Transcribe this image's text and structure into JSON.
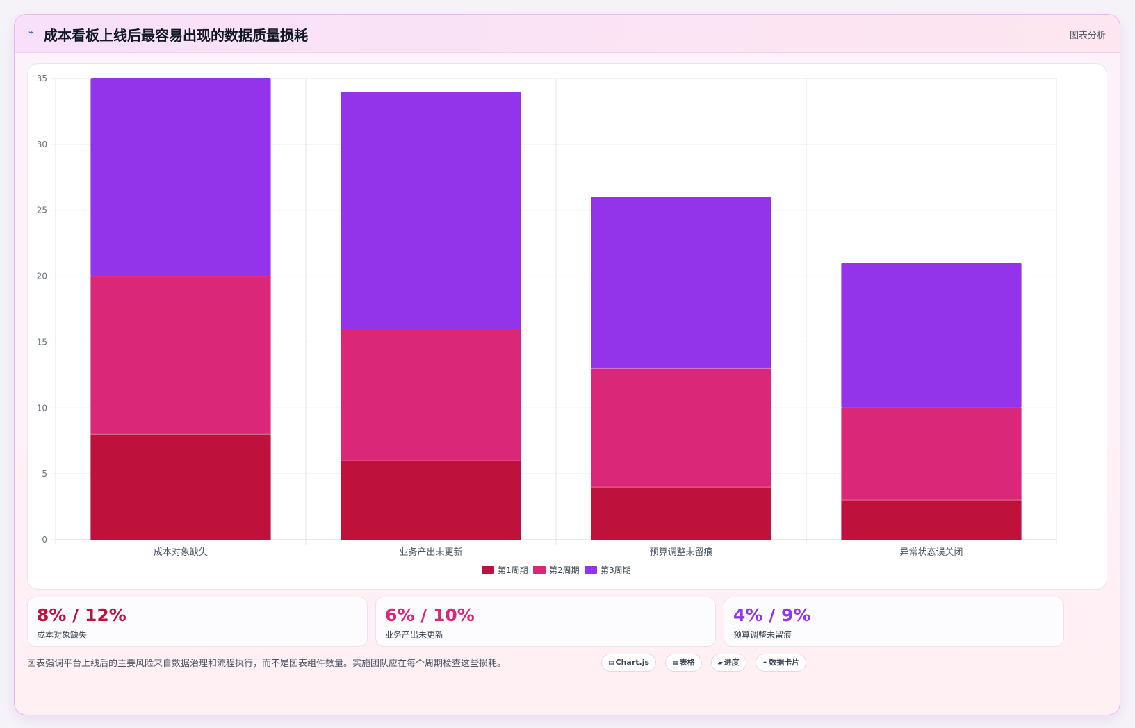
{
  "header": {
    "icon": "pulse-icon",
    "title": "成本看板上线后最容易出现的数据质量损耗",
    "link_label": "图表分析"
  },
  "colors": {
    "series1": "#be123c",
    "series2": "#db2777",
    "series3": "#9333ea",
    "grid": "#e5e7eb",
    "axis_text": "#6b7280"
  },
  "chart_data": {
    "type": "bar",
    "stacked": true,
    "categories": [
      "成本对象缺失",
      "业务产出未更新",
      "预算调整未留痕",
      "异常状态误关闭"
    ],
    "series": [
      {
        "name": "第1周期",
        "values": [
          8,
          6,
          4,
          3
        ]
      },
      {
        "name": "第2周期",
        "values": [
          12,
          10,
          9,
          7
        ]
      },
      {
        "name": "第3周期",
        "values": [
          15,
          18,
          13,
          11
        ]
      }
    ],
    "ylim": [
      0,
      35
    ],
    "yticks": [
      0,
      5,
      10,
      15,
      20,
      25,
      30,
      35
    ],
    "grid": true,
    "legend": "bottom"
  },
  "stats": [
    {
      "value": "8% / 12%",
      "label": "成本对象缺失",
      "color": "#be123c"
    },
    {
      "value": "6% / 10%",
      "label": "业务产出未更新",
      "color": "#db2777"
    },
    {
      "value": "4% / 9%",
      "label": "预算调整未留痕",
      "color": "#9333ea"
    }
  ],
  "footnote": "图表强调平台上线后的主要风险来自数据治理和流程执行，而不是图表组件数量。实施团队应在每个周期检查这些损耗。",
  "tags": [
    {
      "icon": "▤",
      "label": "Chart.js"
    },
    {
      "icon": "▦",
      "label": "表格"
    },
    {
      "icon": "▰",
      "label": "进度"
    },
    {
      "icon": "✦",
      "label": "数据卡片"
    }
  ]
}
